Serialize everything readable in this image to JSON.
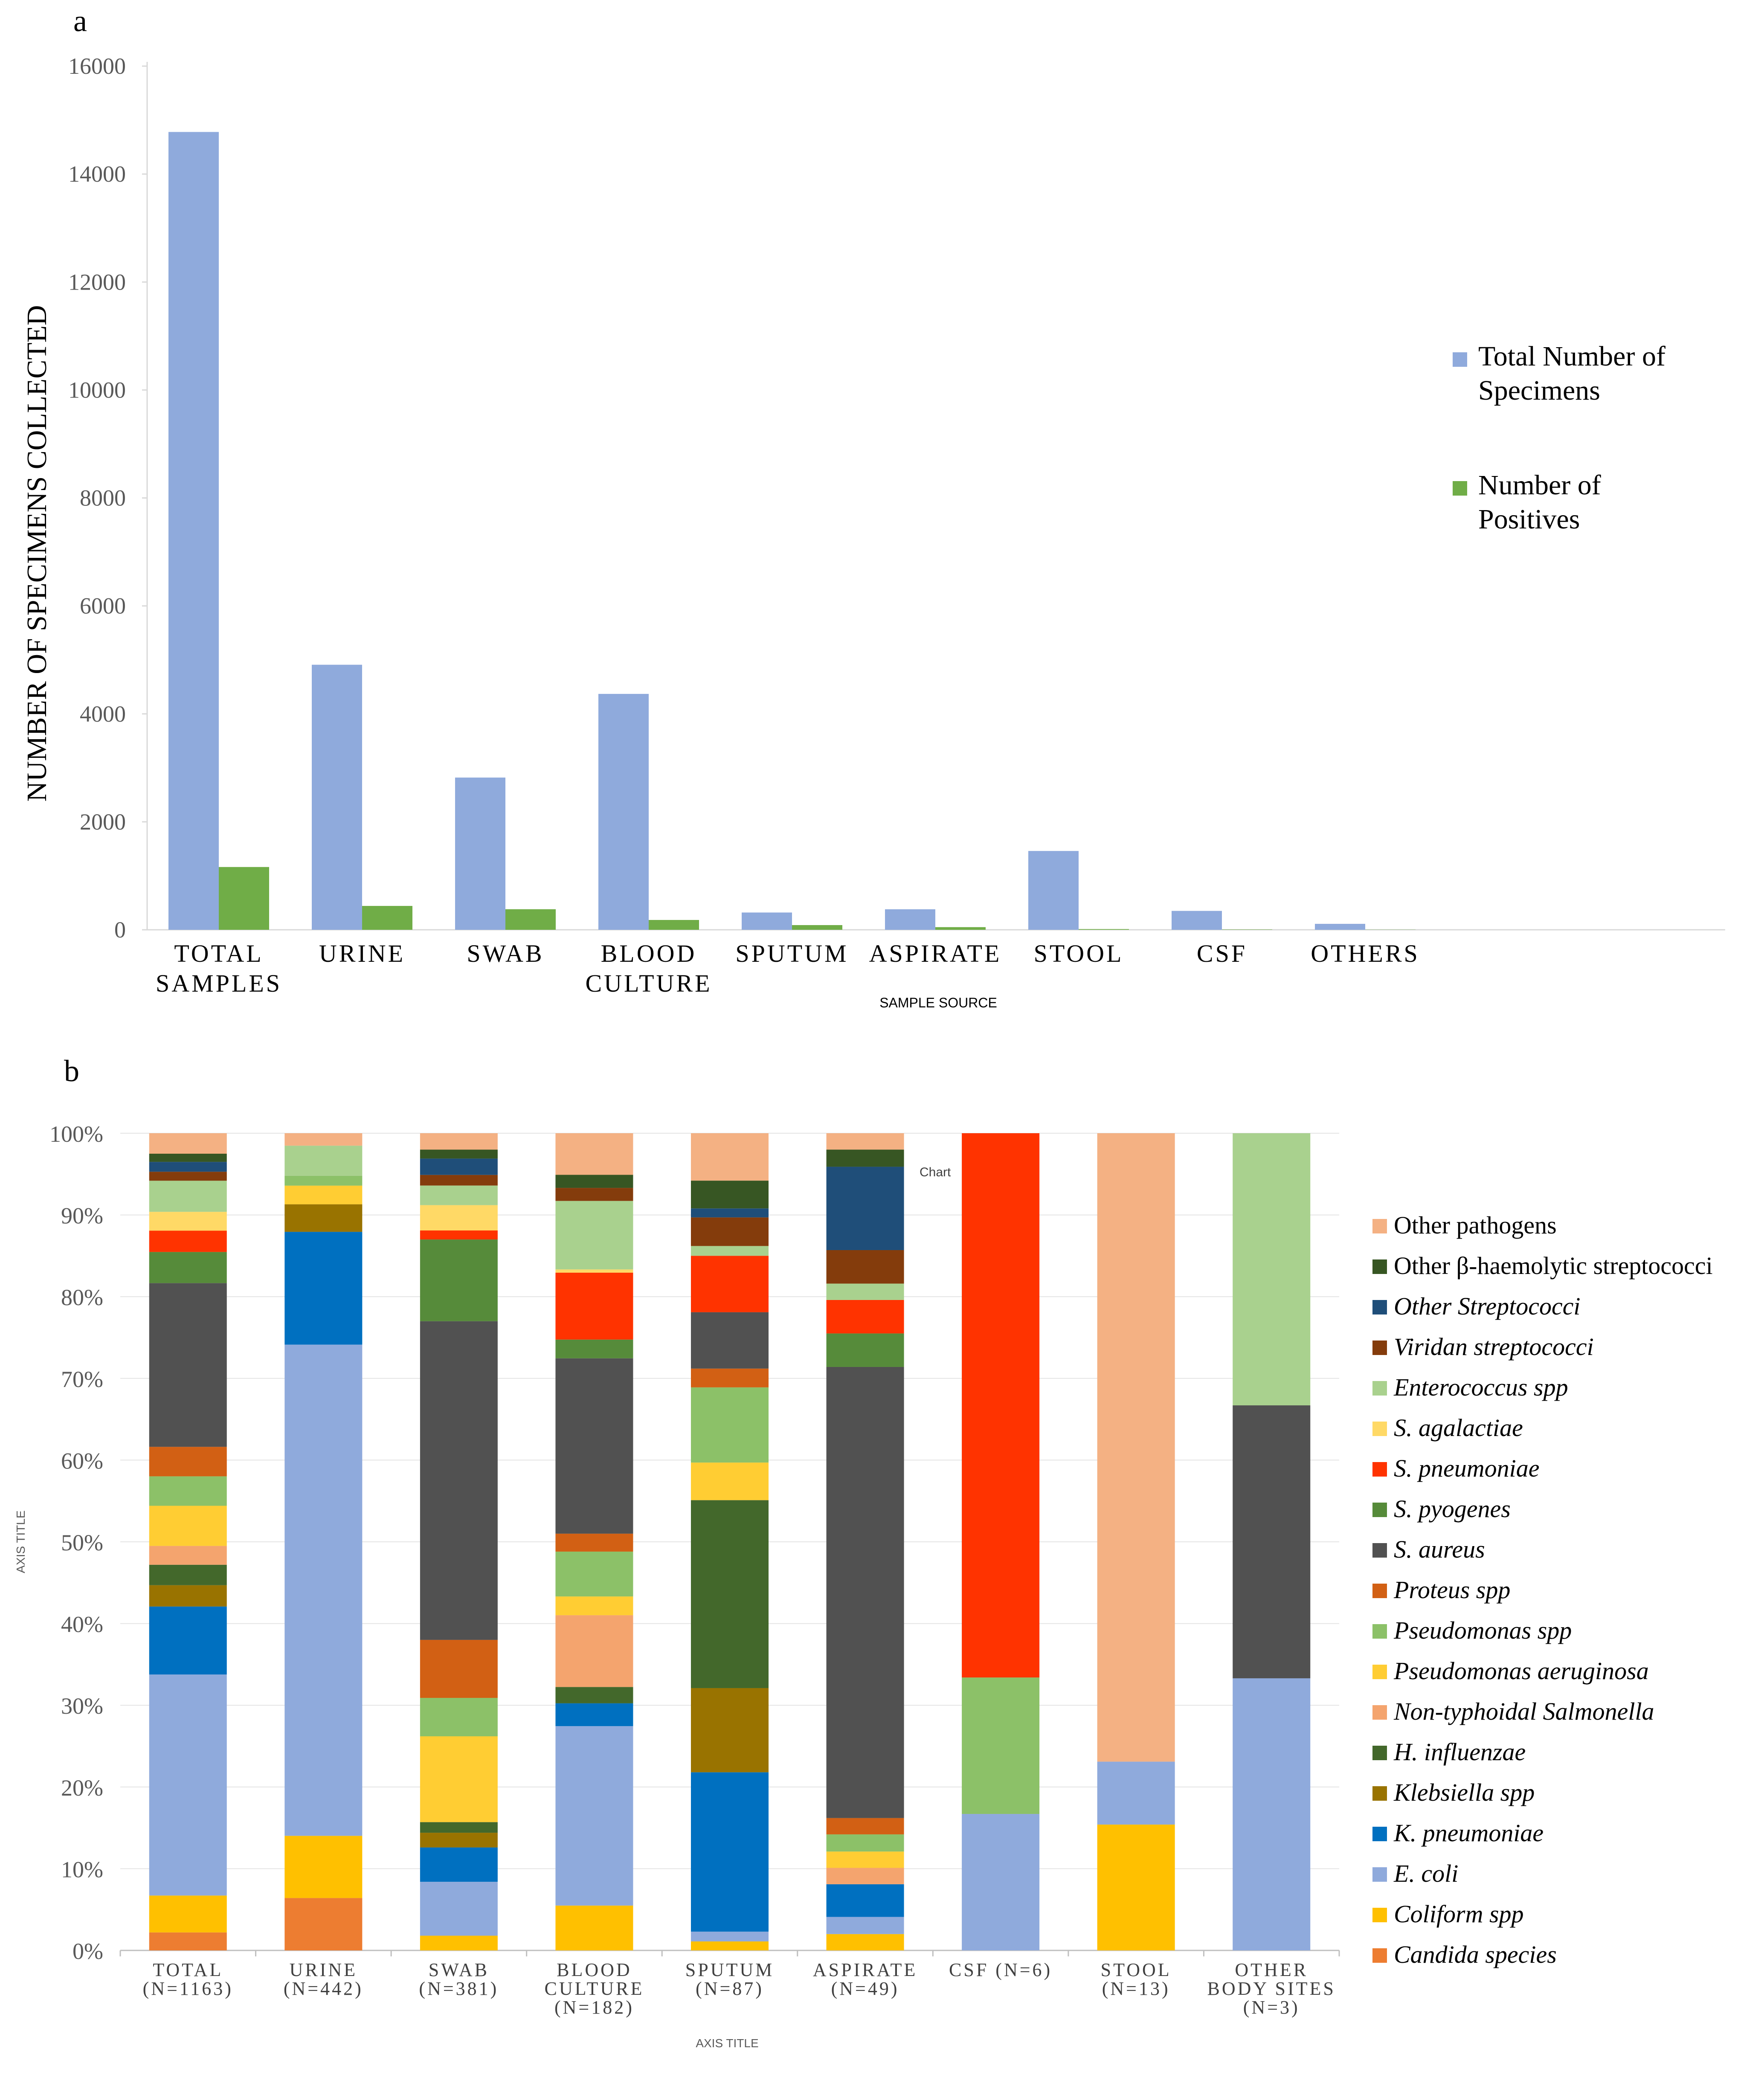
{
  "panel_a": {
    "panel_label": "a",
    "chart_data": {
      "type": "bar",
      "title": "",
      "xlabel": "SAMPLE SOURCE",
      "ylabel": "NUMBER OF SPECIMENS COLLECTED",
      "ylim": [
        0,
        16000
      ],
      "yticks": [
        "0",
        "2000",
        "4000",
        "6000",
        "8000",
        "10000",
        "12000",
        "14000",
        "16000"
      ],
      "categories": [
        [
          "TOTAL",
          "SAMPLES"
        ],
        [
          "URINE"
        ],
        [
          "SWAB"
        ],
        [
          "BLOOD",
          "CULTURE"
        ],
        [
          "SPUTUM"
        ],
        [
          "ASPIRATE"
        ],
        [
          "STOOL"
        ],
        [
          "CSF"
        ],
        [
          "OTHERS"
        ]
      ],
      "series": [
        {
          "name": [
            "Total Number of",
            "Specimens"
          ],
          "color": "#8FAADC",
          "values": [
            14780,
            4910,
            2820,
            4370,
            320,
            380,
            1460,
            350,
            110
          ]
        },
        {
          "name": [
            "Number of",
            "Positives"
          ],
          "color": "#70AD47",
          "values": [
            1163,
            442,
            381,
            182,
            87,
            49,
            13,
            6,
            3
          ]
        }
      ],
      "legend_position": "right"
    }
  },
  "panel_b": {
    "panel_label": "b",
    "chart_data": {
      "type": "bar",
      "stacked": "percent",
      "title": "Chart",
      "xlabel": "AXIS TITLE",
      "ylabel": "AXIS TITLE",
      "ylim": [
        0,
        100
      ],
      "yticks": [
        "0%",
        "10%",
        "20%",
        "30%",
        "40%",
        "50%",
        "60%",
        "70%",
        "80%",
        "90%",
        "100%"
      ],
      "categories": [
        [
          "TOTAL",
          "(N=1163)"
        ],
        [
          "URINE",
          "(N=442)"
        ],
        [
          "SWAB",
          "(N=381)"
        ],
        [
          "BLOOD",
          "CULTURE",
          "(N=182)"
        ],
        [
          "SPUTUM",
          "(N=87)"
        ],
        [
          "ASPIRATE",
          "(N=49)"
        ],
        [
          "CSF (N=6)"
        ],
        [
          "STOOL",
          "(N=13)"
        ],
        [
          "OTHER",
          "BODY SITES",
          "(N=3)"
        ]
      ],
      "series": [
        {
          "name": "Candida species",
          "italic": true,
          "color": "#ED7D31",
          "values": [
            2.2,
            5.9,
            0,
            0,
            0,
            0,
            0,
            0,
            0
          ]
        },
        {
          "name": "Coliform spp",
          "italic": true,
          "color": "#FFC000",
          "values": [
            4.5,
            7.0,
            1.8,
            5.5,
            1.1,
            2.0,
            0,
            15.4,
            0
          ]
        },
        {
          "name": "E. coli",
          "italic": true,
          "color": "#8FAADC",
          "values": [
            27.0,
            55.3,
            6.6,
            22.0,
            1.2,
            2.1,
            16.7,
            7.7,
            33.3
          ]
        },
        {
          "name": "K. pneumoniae",
          "italic": true,
          "color": "#0070C0",
          "values": [
            8.3,
            12.7,
            4.2,
            2.8,
            19.5,
            4.0,
            0,
            0,
            0
          ]
        },
        {
          "name": "Klebsiella spp",
          "italic": true,
          "color": "#997300",
          "values": [
            2.6,
            3.1,
            1.8,
            0,
            10.3,
            0,
            0,
            0,
            0
          ]
        },
        {
          "name": "H. influenzae",
          "italic": true,
          "color": "#43682B",
          "values": [
            2.5,
            0,
            1.3,
            2.0,
            23.0,
            0,
            0,
            0,
            0
          ]
        },
        {
          "name": "Non-typhoidal Salmonella",
          "italic": true,
          "color": "#F4A46E",
          "values": [
            2.3,
            0,
            0,
            8.8,
            0,
            2.0,
            0,
            0,
            0
          ]
        },
        {
          "name": "Pseudomonas aeruginosa",
          "italic": true,
          "color": "#FFCD33",
          "values": [
            4.9,
            2.1,
            10.5,
            2.3,
            4.6,
            2.0,
            0,
            0,
            0
          ]
        },
        {
          "name": "Pseudomonas spp",
          "italic": true,
          "color": "#8CC168",
          "values": [
            3.6,
            1.1,
            4.7,
            5.5,
            9.2,
            2.1,
            16.7,
            0,
            0
          ]
        },
        {
          "name": "Proteus spp",
          "italic": true,
          "color": "#D26014",
          "values": [
            3.6,
            0,
            7.1,
            2.2,
            2.3,
            2.0,
            0,
            0,
            0
          ]
        },
        {
          "name": "S. aureus",
          "italic": true,
          "color": "#515151",
          "values": [
            20.0,
            0,
            39.0,
            21.5,
            6.9,
            55.2,
            0,
            0,
            33.4
          ]
        },
        {
          "name": "S. pyogenes",
          "italic": true,
          "color": "#568B3A",
          "values": [
            3.8,
            0,
            10.0,
            2.3,
            0,
            4.1,
            0,
            0,
            0
          ]
        },
        {
          "name": "S. pneumoniae",
          "italic": true,
          "color": "#FF3300",
          "values": [
            2.6,
            0,
            1.1,
            8.2,
            6.9,
            4.1,
            66.6,
            0,
            0
          ]
        },
        {
          "name": "S. agalactiae",
          "italic": true,
          "color": "#FFD966",
          "values": [
            2.3,
            0,
            3.1,
            0.4,
            0,
            0,
            0,
            0,
            0
          ]
        },
        {
          "name": "Enterococcus spp",
          "italic": true,
          "color": "#A9D18E",
          "values": [
            3.8,
            3.4,
            2.4,
            8.4,
            1.2,
            2.0,
            0,
            0,
            33.3
          ]
        },
        {
          "name": "Viridan streptococci",
          "italic": true,
          "color": "#843C0C",
          "values": [
            1.1,
            0,
            1.3,
            1.6,
            3.5,
            4.1,
            0,
            0,
            0
          ]
        },
        {
          "name": "Other Streptococci",
          "italic": true,
          "color": "#1F4E79",
          "values": [
            1.2,
            0,
            2.0,
            0,
            1.1,
            10.2,
            0,
            0,
            0
          ]
        },
        {
          "name": "Other β-haemolytic streptococci",
          "italic": false,
          "color": "#375623",
          "values": [
            1.0,
            0,
            1.1,
            1.6,
            3.4,
            2.1,
            0,
            0,
            0
          ]
        },
        {
          "name": "Other pathogens",
          "italic": false,
          "color": "#F4B183",
          "values": [
            2.5,
            1.4,
            2.0,
            5.1,
            5.8,
            2.0,
            0,
            76.9,
            0
          ]
        }
      ],
      "legend_position": "right",
      "legend_order": "top-down reversed"
    }
  },
  "colors": {
    "axis": "#d9d9d9",
    "text": "#000000",
    "tick_text": "#595959"
  }
}
